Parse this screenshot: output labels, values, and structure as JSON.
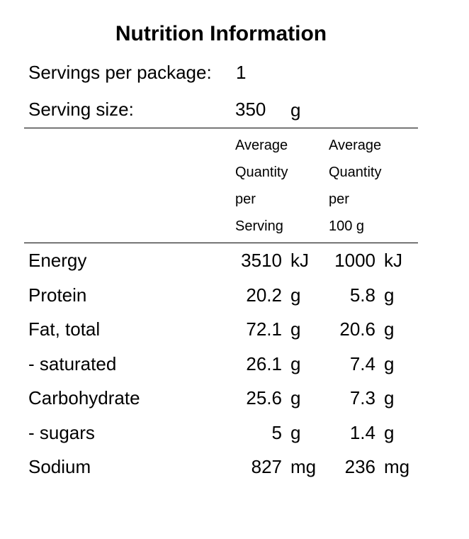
{
  "title": "Nutrition Information",
  "servings_per_package": {
    "label": "Servings per package:",
    "value": 1
  },
  "serving_size": {
    "label": "Serving size:",
    "value": 350,
    "unit": "g"
  },
  "table": {
    "columns": [
      [
        "Average",
        "Quantity",
        "per",
        "Serving"
      ],
      [
        "Average",
        "Quantity",
        "per",
        "100 g"
      ]
    ],
    "rows": [
      {
        "name": "Energy",
        "per_serving": 3510,
        "per_serving_unit": "kJ",
        "per_100g": 1000,
        "per_100g_unit": "kJ"
      },
      {
        "name": "Protein",
        "per_serving": 20.2,
        "per_serving_unit": "g",
        "per_100g": 5.8,
        "per_100g_unit": "g"
      },
      {
        "name": "Fat, total",
        "per_serving": 72.1,
        "per_serving_unit": "g",
        "per_100g": 20.6,
        "per_100g_unit": "g"
      },
      {
        "name": "- saturated",
        "per_serving": 26.1,
        "per_serving_unit": "g",
        "per_100g": 7.4,
        "per_100g_unit": "g"
      },
      {
        "name": "Carbohydrate",
        "per_serving": 25.6,
        "per_serving_unit": "g",
        "per_100g": 7.3,
        "per_100g_unit": "g"
      },
      {
        "name": "- sugars",
        "per_serving": 5,
        "per_serving_unit": "g",
        "per_100g": 1.4,
        "per_100g_unit": "g"
      },
      {
        "name": "Sodium",
        "per_serving": 827,
        "per_serving_unit": "mg",
        "per_100g": 236,
        "per_100g_unit": "mg"
      }
    ]
  }
}
